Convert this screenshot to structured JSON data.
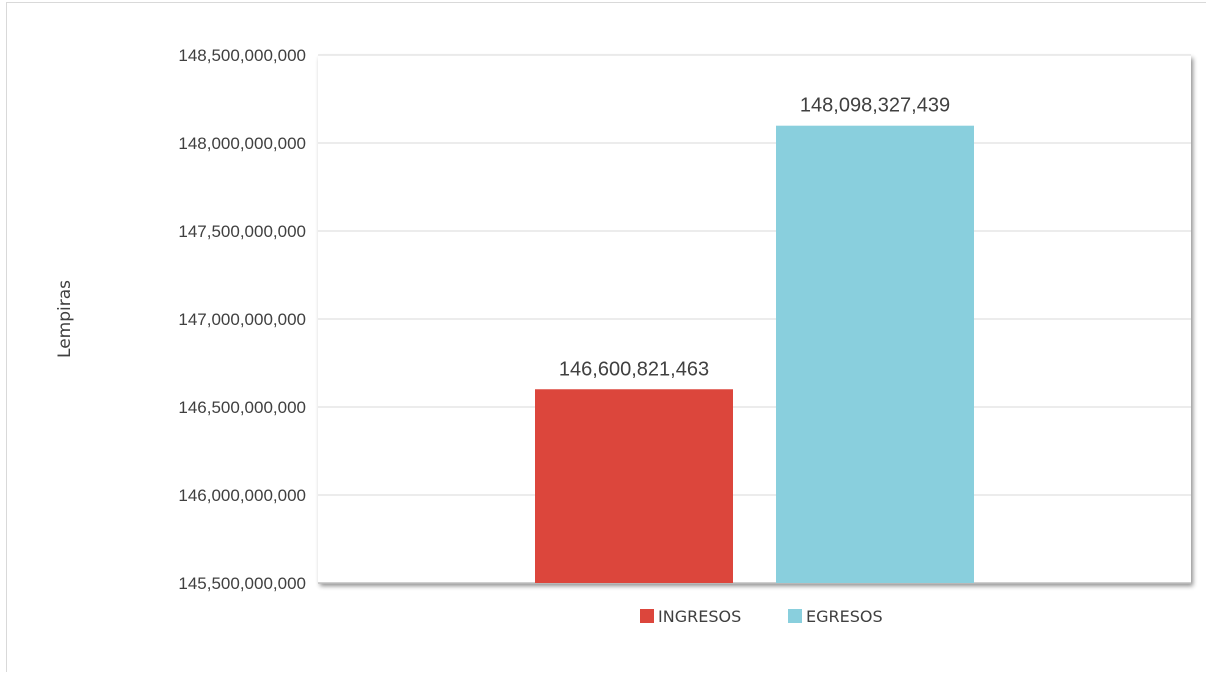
{
  "chart_data": {
    "type": "bar",
    "title": "",
    "xlabel": "",
    "ylabel": "Lempiras",
    "ylim": [
      145500000000,
      148500000000
    ],
    "yticks": [
      145500000000,
      146000000000,
      146500000000,
      147000000000,
      147500000000,
      148000000000,
      148500000000
    ],
    "ytick_labels": [
      "145,500,000,000",
      "146,000,000,000",
      "146,500,000,000",
      "147,000,000,000",
      "147,500,000,000",
      "148,000,000,000",
      "148,500,000,000"
    ],
    "grid": true,
    "legend_position": "bottom",
    "series": [
      {
        "name": "INGRESOS",
        "color": "#dc463c",
        "value": 146600821463,
        "data_label": "146,600,821,463"
      },
      {
        "name": "EGRESOS",
        "color": "#89cfdd",
        "value": 148098327439,
        "data_label": "148,098,327,439"
      }
    ]
  }
}
